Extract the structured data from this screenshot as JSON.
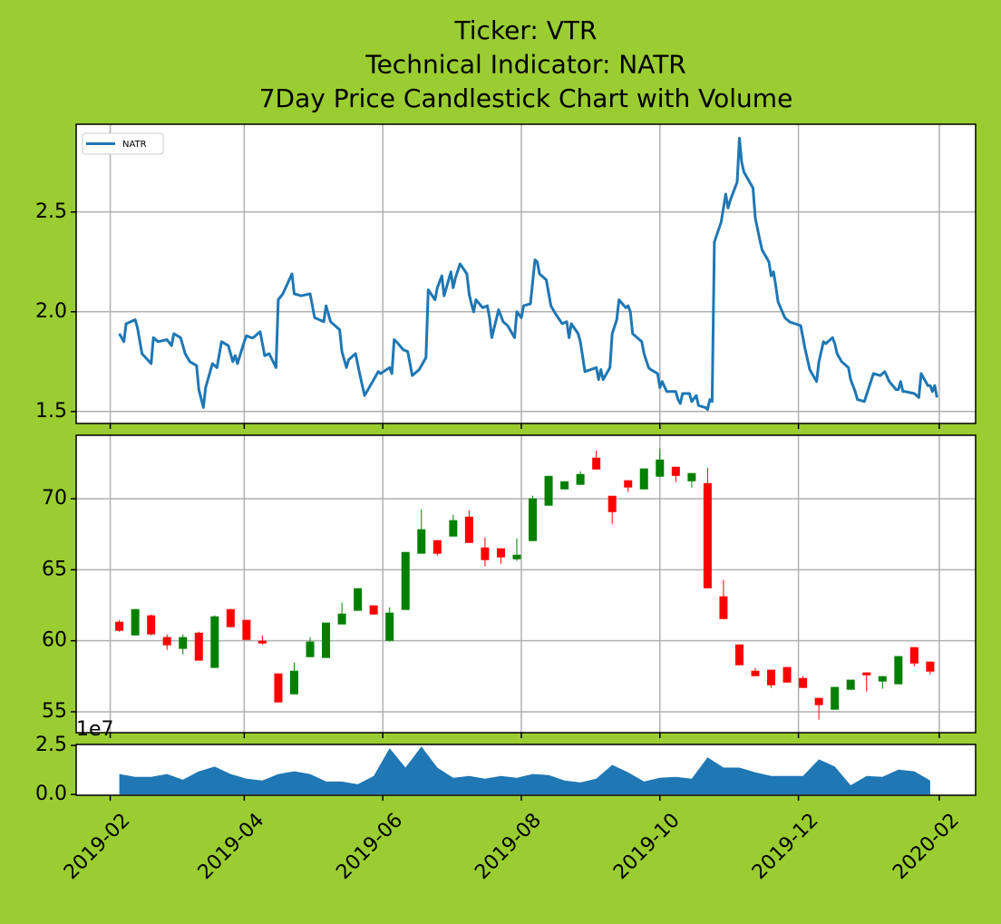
{
  "chart_data": [
    {
      "type": "line",
      "title": [
        "Ticker: VTR",
        "Technical Indicator: NATR",
        "7Day Price Candlestick Chart with Volume"
      ],
      "x": [
        "2019-02-05",
        "2019-02-07",
        "2019-02-08",
        "2019-02-12",
        "2019-02-13",
        "2019-02-15",
        "2019-02-19",
        "2019-02-20",
        "2019-02-22",
        "2019-02-26",
        "2019-02-28",
        "2019-03-01",
        "2019-03-04",
        "2019-03-06",
        "2019-03-08",
        "2019-03-11",
        "2019-03-12",
        "2019-03-14",
        "2019-03-15",
        "2019-03-18",
        "2019-03-20",
        "2019-03-22",
        "2019-03-25",
        "2019-03-27",
        "2019-03-28",
        "2019-03-29",
        "2019-04-01",
        "2019-04-02",
        "2019-04-04",
        "2019-04-05",
        "2019-04-08",
        "2019-04-10",
        "2019-04-12",
        "2019-04-15",
        "2019-04-16",
        "2019-04-18",
        "2019-04-22",
        "2019-04-23",
        "2019-04-26",
        "2019-04-30",
        "2019-05-02",
        "2019-05-06",
        "2019-05-07",
        "2019-05-09",
        "2019-05-13",
        "2019-05-14",
        "2019-05-16",
        "2019-05-17",
        "2019-05-20",
        "2019-05-22",
        "2019-05-24",
        "2019-05-28",
        "2019-05-30",
        "2019-05-31",
        "2019-06-04",
        "2019-06-05",
        "2019-06-06",
        "2019-06-07",
        "2019-06-10",
        "2019-06-12",
        "2019-06-14",
        "2019-06-17",
        "2019-06-18",
        "2019-06-20",
        "2019-06-21",
        "2019-06-24",
        "2019-06-25",
        "2019-06-27",
        "2019-06-28",
        "2019-07-01",
        "2019-07-02",
        "2019-07-03",
        "2019-07-05",
        "2019-07-08",
        "2019-07-09",
        "2019-07-10",
        "2019-07-11",
        "2019-07-12",
        "2019-07-15",
        "2019-07-17",
        "2019-07-18",
        "2019-07-19",
        "2019-07-22",
        "2019-07-24",
        "2019-07-26",
        "2019-07-29",
        "2019-07-30",
        "2019-08-01",
        "2019-08-02",
        "2019-08-05",
        "2019-08-06",
        "2019-08-07",
        "2019-08-08",
        "2019-08-09",
        "2019-08-12",
        "2019-08-14",
        "2019-08-16",
        "2019-08-19",
        "2019-08-21",
        "2019-08-22",
        "2019-08-23",
        "2019-08-26",
        "2019-08-27",
        "2019-08-29",
        "2019-09-03",
        "2019-09-04",
        "2019-09-05",
        "2019-09-06",
        "2019-09-09",
        "2019-09-10",
        "2019-09-12",
        "2019-09-13",
        "2019-09-16",
        "2019-09-17",
        "2019-09-18",
        "2019-09-19",
        "2019-09-23",
        "2019-09-24",
        "2019-09-26",
        "2019-09-27",
        "2019-09-30",
        "2019-10-01",
        "2019-10-02",
        "2019-10-04",
        "2019-10-07",
        "2019-10-08",
        "2019-10-09",
        "2019-10-10",
        "2019-10-11",
        "2019-10-14",
        "2019-10-15",
        "2019-10-17",
        "2019-10-18",
        "2019-10-21",
        "2019-10-22",
        "2019-10-23",
        "2019-10-24",
        "2019-10-25",
        "2019-10-28",
        "2019-10-30",
        "2019-10-31",
        "2019-11-01",
        "2019-11-04",
        "2019-11-05",
        "2019-11-06",
        "2019-11-07",
        "2019-11-11",
        "2019-11-12",
        "2019-11-14",
        "2019-11-15",
        "2019-11-18",
        "2019-11-19",
        "2019-11-20",
        "2019-11-21",
        "2019-11-22",
        "2019-11-25",
        "2019-11-27",
        "2019-12-02",
        "2019-12-04",
        "2019-12-06",
        "2019-12-09",
        "2019-12-10",
        "2019-12-12",
        "2019-12-13",
        "2019-12-16",
        "2019-12-17",
        "2019-12-18",
        "2019-12-20",
        "2019-12-23",
        "2019-12-24",
        "2019-12-26",
        "2019-12-27",
        "2019-12-30",
        "2020-01-03",
        "2020-01-06",
        "2020-01-08",
        "2020-01-10",
        "2020-01-13",
        "2020-01-14",
        "2020-01-15",
        "2020-01-16",
        "2020-01-17",
        "2020-01-21",
        "2020-01-23",
        "2020-01-24",
        "2020-01-27",
        "2020-01-28",
        "2020-01-29",
        "2020-01-30",
        "2020-01-31"
      ],
      "series": [
        {
          "name": "NATR",
          "color": "#1f77b4",
          "values": [
            1.89,
            1.85,
            1.94,
            1.96,
            1.92,
            1.79,
            1.74,
            1.87,
            1.85,
            1.86,
            1.83,
            1.89,
            1.87,
            1.79,
            1.75,
            1.73,
            1.61,
            1.52,
            1.62,
            1.74,
            1.72,
            1.85,
            1.83,
            1.75,
            1.78,
            1.74,
            1.85,
            1.88,
            1.87,
            1.87,
            1.9,
            1.78,
            1.79,
            1.72,
            2.06,
            2.09,
            2.19,
            2.09,
            2.08,
            2.09,
            1.97,
            1.95,
            2.03,
            1.95,
            1.91,
            1.8,
            1.72,
            1.76,
            1.79,
            1.68,
            1.58,
            1.66,
            1.7,
            1.69,
            1.72,
            1.69,
            1.86,
            1.85,
            1.81,
            1.8,
            1.68,
            1.71,
            1.73,
            1.77,
            2.11,
            2.06,
            2.12,
            2.18,
            2.08,
            2.2,
            2.12,
            2.17,
            2.24,
            2.19,
            2.09,
            2.04,
            2.0,
            2.06,
            2.02,
            2.03,
            1.97,
            1.87,
            2.01,
            1.95,
            1.93,
            1.87,
            2.0,
            1.97,
            2.03,
            2.04,
            2.15,
            2.26,
            2.25,
            2.19,
            2.16,
            2.03,
            1.99,
            1.94,
            1.95,
            1.87,
            1.94,
            1.89,
            1.85,
            1.7,
            1.72,
            1.66,
            1.71,
            1.66,
            1.72,
            1.89,
            1.96,
            2.06,
            2.02,
            2.03,
            2.0,
            1.89,
            1.85,
            1.79,
            1.72,
            1.71,
            1.69,
            1.62,
            1.65,
            1.6,
            1.6,
            1.6,
            1.56,
            1.54,
            1.59,
            1.59,
            1.55,
            1.58,
            1.53,
            1.52,
            1.51,
            1.56,
            1.55,
            2.35,
            2.45,
            2.59,
            2.52,
            2.56,
            2.65,
            2.87,
            2.75,
            2.7,
            2.62,
            2.47,
            2.36,
            2.31,
            2.25,
            2.18,
            2.2,
            2.13,
            2.05,
            1.97,
            1.95,
            1.93,
            1.81,
            1.71,
            1.65,
            1.75,
            1.85,
            1.84,
            1.87,
            1.84,
            1.79,
            1.75,
            1.72,
            1.66,
            1.6,
            1.56,
            1.55,
            1.69,
            1.68,
            1.7,
            1.65,
            1.61,
            1.61,
            1.65,
            1.6,
            1.6,
            1.59,
            1.57,
            1.69,
            1.63,
            1.63,
            1.6,
            1.63,
            1.57
          ]
        }
      ],
      "xlim": [
        "2019-01-17",
        "2020-02-17"
      ],
      "ylim": [
        1.44,
        2.94
      ],
      "yticks": [
        1.5,
        {
          "value": 2,
          "label": "2.0"
        },
        2.5
      ],
      "grid": true,
      "legend": "upper left"
    },
    {
      "type": "candlestick",
      "x": [
        "2019-02-05",
        "2019-02-12",
        "2019-02-19",
        "2019-02-26",
        "2019-03-05",
        "2019-03-12",
        "2019-03-19",
        "2019-03-26",
        "2019-04-02",
        "2019-04-09",
        "2019-04-16",
        "2019-04-23",
        "2019-04-30",
        "2019-05-07",
        "2019-05-14",
        "2019-05-21",
        "2019-05-28",
        "2019-06-04",
        "2019-06-11",
        "2019-06-18",
        "2019-06-25",
        "2019-07-02",
        "2019-07-09",
        "2019-07-16",
        "2019-07-23",
        "2019-07-30",
        "2019-08-06",
        "2019-08-13",
        "2019-08-20",
        "2019-08-27",
        "2019-09-03",
        "2019-09-10",
        "2019-09-17",
        "2019-09-24",
        "2019-10-01",
        "2019-10-08",
        "2019-10-15",
        "2019-10-22",
        "2019-10-29",
        "2019-11-05",
        "2019-11-12",
        "2019-11-19",
        "2019-11-26",
        "2019-12-03",
        "2019-12-10",
        "2019-12-17",
        "2019-12-24",
        "2019-12-31",
        "2020-01-07",
        "2020-01-14",
        "2020-01-21",
        "2020-01-28"
      ],
      "open": [
        61.34,
        60.38,
        61.79,
        60.26,
        59.43,
        60.57,
        58.09,
        62.23,
        61.47,
        60.0,
        57.7,
        56.23,
        58.85,
        58.79,
        61.15,
        62.11,
        62.49,
        60.0,
        62.17,
        66.13,
        67.08,
        67.34,
        68.74,
        66.57,
        66.51,
        65.74,
        67.02,
        69.51,
        70.66,
        70.98,
        72.89,
        70.21,
        71.3,
        70.66,
        71.55,
        72.25,
        71.23,
        71.1,
        63.13,
        59.74,
        57.89,
        57.96,
        58.15,
        57.38,
        55.98,
        55.15,
        56.55,
        57.77,
        57.13,
        56.94,
        59.55,
        58.53
      ],
      "high": [
        61.47,
        62.23,
        61.85,
        60.45,
        60.45,
        60.64,
        61.79,
        62.23,
        61.47,
        60.38,
        57.7,
        58.47,
        60.26,
        61.28,
        62.68,
        63.7,
        62.49,
        62.36,
        66.25,
        69.25,
        67.08,
        68.87,
        69.19,
        67.28,
        66.51,
        67.21,
        70.21,
        71.61,
        71.23,
        71.93,
        73.4,
        70.21,
        71.3,
        72.13,
        73.53,
        72.25,
        71.81,
        72.19,
        64.28,
        59.74,
        58.09,
        57.96,
        58.15,
        57.51,
        55.98,
        56.75,
        57.26,
        57.77,
        57.51,
        58.92,
        59.55,
        58.53
      ],
      "low": [
        60.64,
        60.38,
        60.38,
        59.36,
        59.04,
        58.6,
        58.09,
        60.96,
        60.06,
        59.74,
        55.66,
        56.23,
        58.85,
        58.79,
        61.15,
        62.11,
        61.85,
        59.94,
        62.17,
        66.13,
        66.0,
        67.34,
        66.89,
        65.23,
        65.42,
        65.62,
        67.02,
        69.51,
        70.66,
        70.98,
        72.06,
        68.23,
        70.47,
        70.66,
        71.55,
        71.17,
        70.79,
        63.7,
        61.53,
        58.28,
        57.51,
        56.68,
        57.06,
        56.68,
        54.45,
        55.15,
        56.55,
        56.43,
        56.62,
        56.94,
        58.21,
        57.64
      ],
      "close": [
        60.7,
        62.23,
        60.45,
        59.68,
        60.26,
        58.6,
        61.72,
        60.96,
        60.06,
        59.81,
        55.66,
        57.89,
        59.94,
        61.28,
        61.91,
        63.7,
        61.85,
        61.98,
        66.25,
        67.85,
        66.13,
        68.49,
        66.89,
        65.68,
        65.87,
        66.06,
        70.02,
        71.61,
        71.23,
        71.74,
        72.06,
        69.06,
        70.79,
        72.13,
        72.76,
        71.61,
        71.81,
        63.7,
        61.53,
        58.28,
        57.51,
        56.87,
        57.06,
        56.68,
        55.47,
        56.75,
        57.26,
        57.57,
        57.51,
        58.92,
        58.4,
        57.83
      ],
      "up_color": "green",
      "down_color": "red",
      "xlim": [
        "2019-01-17",
        "2020-02-17"
      ],
      "ylim": [
        53.53,
        74.47
      ],
      "yticks": [
        55,
        60,
        65,
        70
      ],
      "grid": true
    },
    {
      "type": "area",
      "x": [
        "2019-02-05",
        "2019-02-12",
        "2019-02-19",
        "2019-02-26",
        "2019-03-05",
        "2019-03-12",
        "2019-03-19",
        "2019-03-26",
        "2019-04-02",
        "2019-04-09",
        "2019-04-16",
        "2019-04-23",
        "2019-04-30",
        "2019-05-07",
        "2019-05-14",
        "2019-05-21",
        "2019-05-28",
        "2019-06-04",
        "2019-06-11",
        "2019-06-18",
        "2019-06-25",
        "2019-07-02",
        "2019-07-09",
        "2019-07-16",
        "2019-07-23",
        "2019-07-30",
        "2019-08-06",
        "2019-08-13",
        "2019-08-20",
        "2019-08-27",
        "2019-09-03",
        "2019-09-10",
        "2019-09-17",
        "2019-09-24",
        "2019-10-01",
        "2019-10-08",
        "2019-10-15",
        "2019-10-22",
        "2019-10-29",
        "2019-11-05",
        "2019-11-12",
        "2019-11-19",
        "2019-11-26",
        "2019-12-03",
        "2019-12-10",
        "2019-12-17",
        "2019-12-24",
        "2019-12-31",
        "2020-01-07",
        "2020-01-14",
        "2020-01-21",
        "2020-01-28"
      ],
      "values": [
        1.04,
        0.9,
        0.9,
        1.04,
        0.75,
        1.18,
        1.42,
        1.04,
        0.8,
        0.71,
        1.04,
        1.18,
        1.04,
        0.66,
        0.66,
        0.52,
        0.94,
        2.36,
        1.37,
        2.45,
        1.37,
        0.85,
        0.94,
        0.8,
        0.94,
        0.85,
        1.04,
        0.99,
        0.71,
        0.61,
        0.8,
        1.51,
        1.13,
        0.66,
        0.85,
        0.9,
        0.8,
        1.89,
        1.37,
        1.37,
        1.13,
        0.94,
        0.94,
        0.94,
        1.79,
        1.42,
        0.47,
        0.94,
        0.9,
        1.27,
        1.18,
        0.71
      ],
      "color": "#1f77b4",
      "offset_label": "1e7",
      "xlim": [
        "2019-01-17",
        "2020-02-17"
      ],
      "xticks": [
        "2019-02",
        "2019-04",
        "2019-06",
        "2019-08",
        "2019-10",
        "2019-12",
        "2020-02"
      ],
      "ylim": [
        -0.04,
        2.55
      ],
      "yticks": [
        {
          "value": 0,
          "label": "0.0"
        },
        2.5
      ],
      "grid": false
    }
  ]
}
